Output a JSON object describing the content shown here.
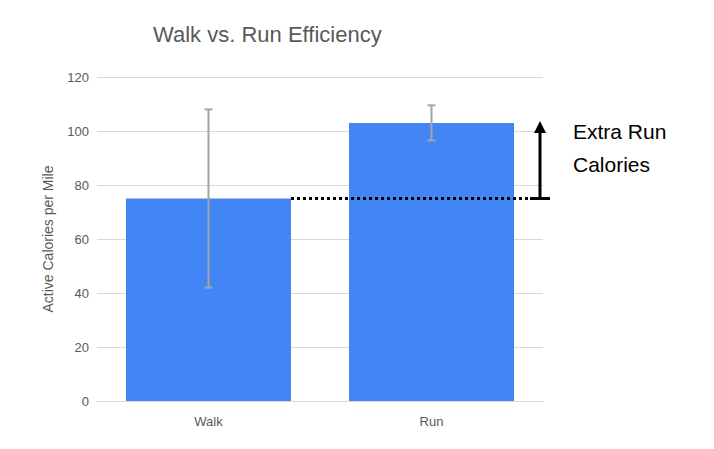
{
  "chart_data": {
    "type": "bar",
    "title": "Walk vs. Run Efficiency",
    "categories": [
      "Walk",
      "Run"
    ],
    "values": [
      75,
      103
    ],
    "errors": [
      33,
      6.5
    ],
    "color": "#4285f4",
    "ylabel": "Active Calories per Mile",
    "ylim": [
      0,
      120
    ],
    "yticks": [
      0,
      20,
      40,
      60,
      80,
      100,
      120
    ],
    "grid": true,
    "annotation": "Extra Run Calories"
  }
}
